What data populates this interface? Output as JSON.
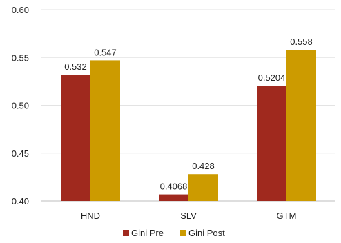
{
  "chart_data": {
    "type": "bar",
    "categories": [
      "HND",
      "SLV",
      "GTM"
    ],
    "series": [
      {
        "name": "Gini Pre",
        "values": [
          0.532,
          0.4068,
          0.5204
        ],
        "labels": [
          "0.532",
          "0.4068",
          "0.5204"
        ],
        "color": "#a0291e"
      },
      {
        "name": "Gini Post",
        "values": [
          0.547,
          0.428,
          0.558
        ],
        "labels": [
          "0.547",
          "0.428",
          "0.558"
        ],
        "color": "#cc9b00"
      }
    ],
    "ylim": [
      0.4,
      0.6
    ],
    "yticks": [
      "0.40",
      "0.45",
      "0.50",
      "0.55",
      "0.60"
    ],
    "ytick_values": [
      0.4,
      0.45,
      0.5,
      0.55,
      0.6
    ],
    "grid": true,
    "legend": "bottom-center"
  }
}
